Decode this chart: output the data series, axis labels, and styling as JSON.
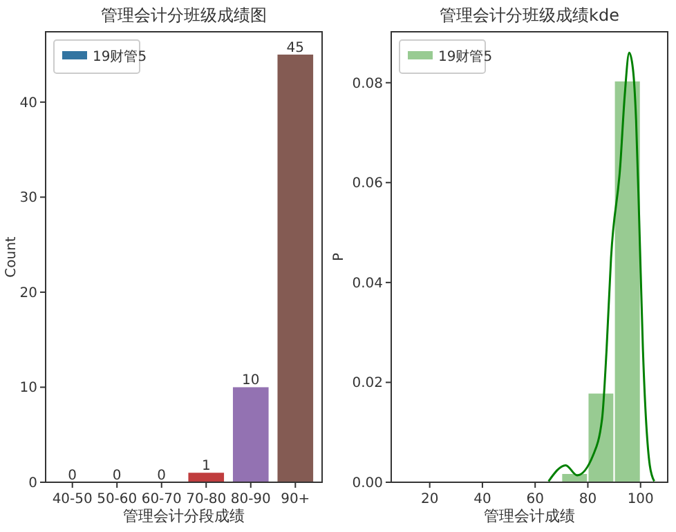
{
  "chart_data": [
    {
      "type": "bar",
      "title": "管理会计分班级成绩图",
      "xlabel": "管理会计分段成绩",
      "ylabel": "Count",
      "categories": [
        "40-50",
        "50-60",
        "60-70",
        "70-80",
        "80-90",
        "90+"
      ],
      "series": [
        {
          "name": "19财管5",
          "color": "#3274a1",
          "colors": [
            "#3274a1",
            "#e1812c",
            "#3a923a",
            "#c03d3e",
            "#9372b2",
            "#845b53"
          ],
          "values": [
            0,
            0,
            0,
            1,
            10,
            45
          ]
        }
      ],
      "ylim": [
        0,
        47.4
      ],
      "yticks": [
        0,
        10,
        20,
        30,
        40
      ],
      "data_labels": true,
      "legend": "top left",
      "grid": false
    },
    {
      "type": "histogram",
      "title": "管理会计分班级成绩kde",
      "xlabel": "管理会计成绩",
      "ylabel": "P",
      "series": [
        {
          "type": "histogram",
          "name": "19财管5",
          "color": "#98cb92",
          "bins": [
            70,
            80,
            90,
            100
          ],
          "values": [
            0.0018,
            0.0179,
            0.0804
          ]
        },
        {
          "type": "line",
          "color": "#008000",
          "x": [
            65.1,
            71.6,
            75.9,
            81.9,
            85.4,
            87.1,
            88.8,
            92.3,
            94.0,
            95.7,
            97.1,
            98.3,
            99.5,
            100.9,
            103.5,
            105.2
          ],
          "values": [
            0.0002,
            0.0034,
            0.0014,
            0.0053,
            0.0127,
            0.0265,
            0.0449,
            0.0634,
            0.0775,
            0.086,
            0.0828,
            0.0726,
            0.0523,
            0.0266,
            0.0034,
            0.0002
          ]
        }
      ],
      "xlim": [
        5.4,
        110.3
      ],
      "xticks": [
        20,
        40,
        60,
        80,
        100
      ],
      "ylim": [
        0,
        0.0902
      ],
      "yticks": [
        {
          "value": 0,
          "label": "0.00"
        },
        {
          "value": 0.02,
          "label": "0.02"
        },
        {
          "value": 0.04,
          "label": "0.04"
        },
        {
          "value": 0.06,
          "label": "0.06"
        },
        {
          "value": 0.08,
          "label": "0.08"
        }
      ],
      "legend": "top left",
      "grid": false
    }
  ]
}
